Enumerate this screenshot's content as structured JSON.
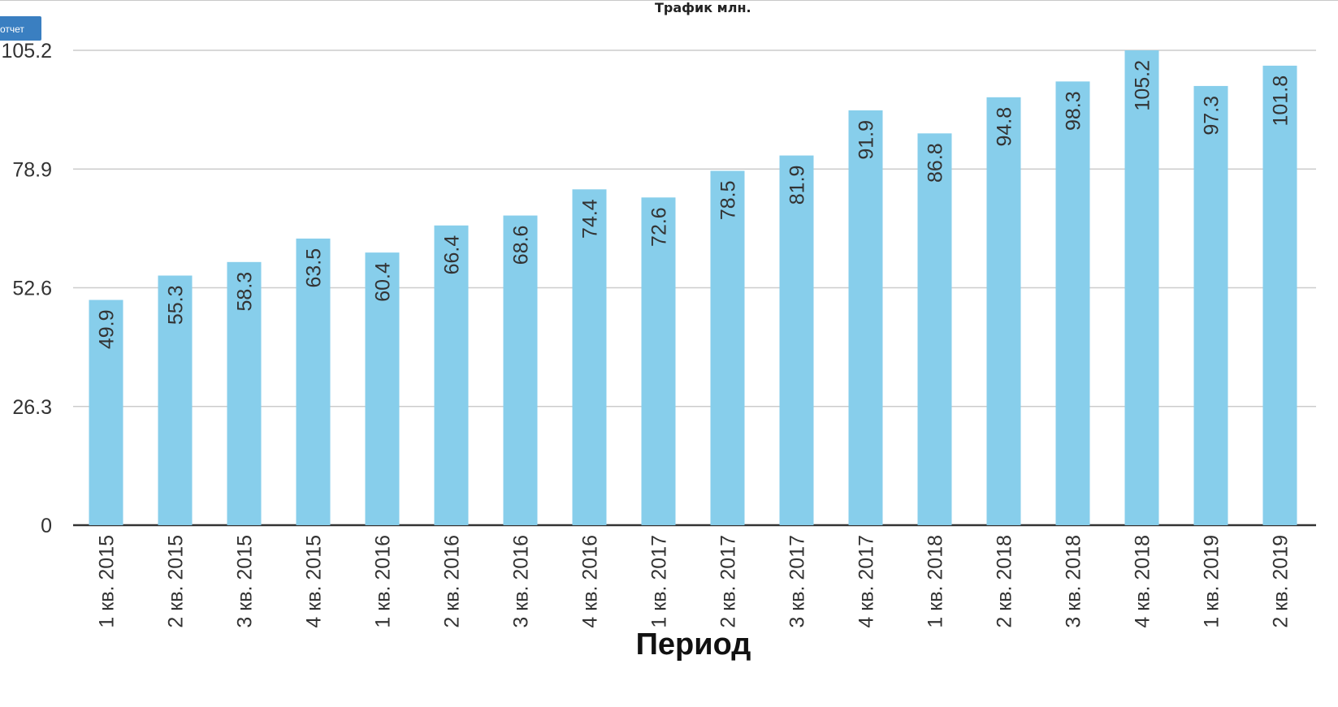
{
  "toolbar": {
    "report_label": "отчет"
  },
  "colors": {
    "bar": "#87ceeb",
    "grid": "#cccccc",
    "axis": "#333333",
    "button": "#3a7fc1"
  },
  "chart_data": {
    "type": "bar",
    "title": "Трафик млн.",
    "xlabel": "Период",
    "ylabel": "",
    "ylim": [
      0,
      105.2
    ],
    "yticks": [
      "0",
      "26.3",
      "52.6",
      "78.9",
      "105.2"
    ],
    "grid": true,
    "categories": [
      "1 кв. 2015",
      "2 кв. 2015",
      "3 кв. 2015",
      "4 кв. 2015",
      "1 кв. 2016",
      "2 кв. 2016",
      "3 кв. 2016",
      "4 кв. 2016",
      "1 кв. 2017",
      "2 кв. 2017",
      "3 кв. 2017",
      "4 кв. 2017",
      "1 кв. 2018",
      "2 кв. 2018",
      "3 кв. 2018",
      "4 кв. 2018",
      "1 кв. 2019",
      "2 кв. 2019"
    ],
    "values": [
      49.9,
      55.3,
      58.3,
      63.5,
      60.4,
      66.4,
      68.6,
      74.4,
      72.6,
      78.5,
      81.9,
      91.9,
      86.8,
      94.8,
      98.3,
      105.2,
      97.3,
      101.8
    ],
    "value_labels": [
      "49.9",
      "55.3",
      "58.3",
      "63.5",
      "60.4",
      "66.4",
      "68.6",
      "74.4",
      "72.6",
      "78.5",
      "81.9",
      "91.9",
      "86.8",
      "94.8",
      "98.3",
      "105.2",
      "97.3",
      "101.8"
    ]
  }
}
